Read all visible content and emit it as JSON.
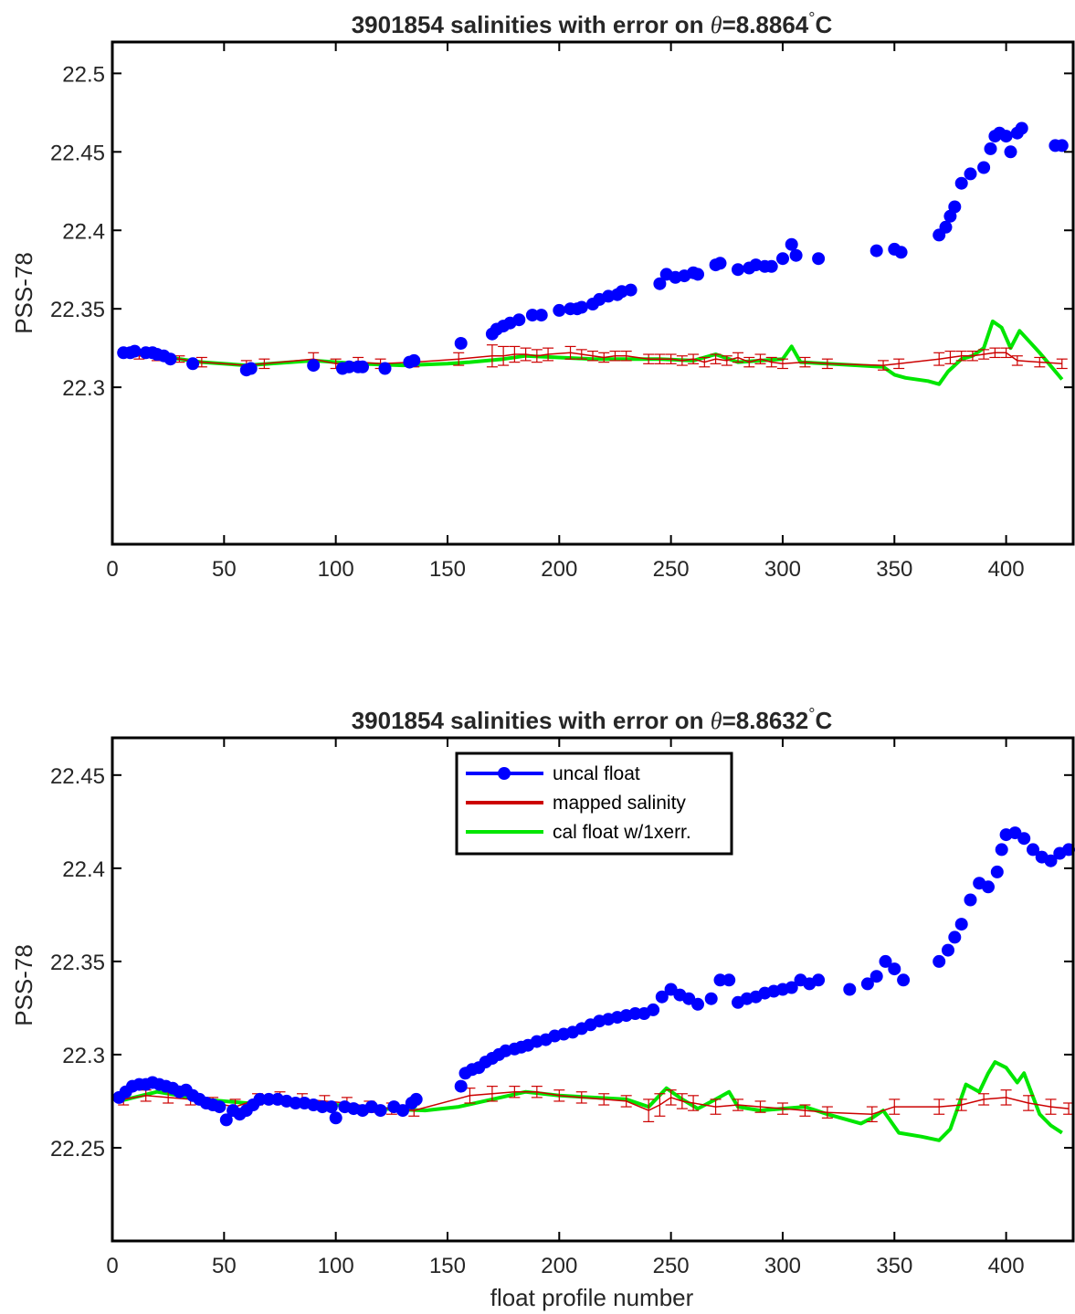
{
  "chart_data": [
    {
      "type": "scatter",
      "title": "3901854 salinities with error on θ=8.8864°C",
      "title_prefix": "3901854 salinities with error on ",
      "title_theta": "θ",
      "title_value": "=8.8864",
      "title_degree": "°",
      "title_unit": "C",
      "xlabel": "",
      "ylabel": "PSS-78",
      "xlim": [
        0,
        430
      ],
      "ylim": [
        22.2,
        22.52
      ],
      "xticks": [
        0,
        50,
        100,
        150,
        200,
        250,
        300,
        350,
        400
      ],
      "yticks": [
        22.3,
        22.35,
        22.4,
        22.45,
        22.5
      ],
      "ytick_labels": [
        "22.3",
        "22.35",
        "22.4",
        "22.45",
        "22.5"
      ],
      "legend": false,
      "series": [
        {
          "name": "uncal float",
          "color": "#0000ff",
          "marker": "circle",
          "x": [
            5,
            8,
            10,
            15,
            18,
            20,
            23,
            26,
            36,
            60,
            62,
            90,
            103,
            106,
            110,
            112,
            122,
            133,
            135,
            156,
            170,
            172,
            175,
            178,
            182,
            188,
            192,
            200,
            205,
            208,
            210,
            215,
            218,
            222,
            226,
            228,
            232,
            245,
            248,
            252,
            256,
            260,
            262,
            270,
            272,
            280,
            285,
            288,
            292,
            295,
            300,
            304,
            306,
            316,
            342,
            350,
            353,
            370,
            373,
            375,
            377,
            380,
            384,
            390,
            393,
            395,
            397,
            400,
            402,
            405,
            407,
            422,
            425
          ],
          "y": [
            22.322,
            22.322,
            22.323,
            22.322,
            22.322,
            22.321,
            22.32,
            22.318,
            22.315,
            22.311,
            22.312,
            22.314,
            22.312,
            22.313,
            22.313,
            22.313,
            22.312,
            22.316,
            22.317,
            22.328,
            22.334,
            22.337,
            22.339,
            22.341,
            22.343,
            22.346,
            22.346,
            22.349,
            22.35,
            22.35,
            22.351,
            22.353,
            22.356,
            22.358,
            22.359,
            22.361,
            22.362,
            22.366,
            22.372,
            22.37,
            22.371,
            22.373,
            22.372,
            22.378,
            22.379,
            22.375,
            22.376,
            22.378,
            22.377,
            22.377,
            22.382,
            22.391,
            22.384,
            22.382,
            22.387,
            22.388,
            22.386,
            22.397,
            22.402,
            22.409,
            22.415,
            22.43,
            22.436,
            22.44,
            22.452,
            22.46,
            22.462,
            22.46,
            22.45,
            22.462,
            22.465,
            22.454,
            22.454
          ]
        },
        {
          "name": "mapped salinity",
          "color": "#cc0000",
          "type": "errorbar",
          "x": [
            5,
            12,
            20,
            30,
            40,
            60,
            68,
            90,
            100,
            110,
            120,
            135,
            155,
            170,
            175,
            180,
            185,
            190,
            195,
            205,
            210,
            215,
            220,
            225,
            230,
            240,
            245,
            250,
            255,
            260,
            265,
            270,
            275,
            280,
            285,
            290,
            295,
            300,
            310,
            320,
            345,
            352,
            370,
            375,
            380,
            385,
            390,
            395,
            400,
            405,
            415,
            425
          ],
          "y": [
            22.322,
            22.32,
            22.319,
            22.318,
            22.316,
            22.314,
            22.315,
            22.318,
            22.315,
            22.316,
            22.315,
            22.316,
            22.318,
            22.32,
            22.32,
            22.321,
            22.321,
            22.32,
            22.321,
            22.322,
            22.321,
            22.32,
            22.319,
            22.32,
            22.32,
            22.318,
            22.318,
            22.318,
            22.317,
            22.318,
            22.316,
            22.318,
            22.317,
            22.319,
            22.316,
            22.318,
            22.316,
            22.315,
            22.316,
            22.315,
            22.314,
            22.315,
            22.318,
            22.319,
            22.32,
            22.32,
            22.321,
            22.322,
            22.322,
            22.317,
            22.316,
            22.315
          ],
          "err": [
            0.002,
            0.002,
            0.002,
            0.002,
            0.003,
            0.003,
            0.003,
            0.004,
            0.003,
            0.003,
            0.003,
            0.003,
            0.004,
            0.007,
            0.006,
            0.005,
            0.004,
            0.004,
            0.004,
            0.004,
            0.003,
            0.003,
            0.003,
            0.003,
            0.003,
            0.003,
            0.003,
            0.003,
            0.003,
            0.003,
            0.003,
            0.003,
            0.003,
            0.003,
            0.003,
            0.003,
            0.003,
            0.003,
            0.003,
            0.003,
            0.003,
            0.003,
            0.004,
            0.004,
            0.003,
            0.003,
            0.003,
            0.003,
            0.003,
            0.003,
            0.003,
            0.003
          ]
        },
        {
          "name": "cal float w/1xerr.",
          "color": "#00e600",
          "type": "line",
          "x": [
            5,
            20,
            40,
            60,
            90,
            110,
            130,
            150,
            160,
            175,
            185,
            200,
            215,
            230,
            245,
            260,
            270,
            280,
            290,
            300,
            304,
            308,
            320,
            345,
            350,
            355,
            365,
            370,
            374,
            380,
            385,
            390,
            394,
            398,
            402,
            406,
            415,
            425
          ],
          "y": [
            22.322,
            22.32,
            22.316,
            22.314,
            22.317,
            22.315,
            22.314,
            22.315,
            22.316,
            22.318,
            22.32,
            22.319,
            22.318,
            22.318,
            22.318,
            22.317,
            22.321,
            22.316,
            22.317,
            22.318,
            22.326,
            22.316,
            22.315,
            22.313,
            22.308,
            22.306,
            22.304,
            22.302,
            22.31,
            22.318,
            22.32,
            22.325,
            22.342,
            22.338,
            22.325,
            22.336,
            22.322,
            22.305
          ]
        }
      ]
    },
    {
      "type": "scatter",
      "title": "3901854 salinities with error on θ=8.8632°C",
      "title_prefix": "3901854 salinities with error on ",
      "title_theta": "θ",
      "title_value": "=8.8632",
      "title_degree": "°",
      "title_unit": "C",
      "xlabel": "float profile number",
      "ylabel": "PSS-78",
      "xlim": [
        0,
        430
      ],
      "ylim": [
        22.2,
        22.47
      ],
      "xticks": [
        0,
        50,
        100,
        150,
        200,
        250,
        300,
        350,
        400
      ],
      "yticks": [
        22.25,
        22.3,
        22.35,
        22.4,
        22.45
      ],
      "ytick_labels": [
        "22.25",
        "22.3",
        "22.35",
        "22.4",
        "22.45"
      ],
      "legend": true,
      "legend_position": "top-center",
      "series": [
        {
          "name": "uncal float",
          "color": "#0000ff",
          "marker": "circle",
          "x": [
            3,
            6,
            9,
            12,
            15,
            18,
            21,
            24,
            27,
            30,
            33,
            36,
            39,
            42,
            45,
            48,
            51,
            54,
            57,
            60,
            63,
            66,
            70,
            74,
            78,
            82,
            86,
            90,
            94,
            98,
            100,
            104,
            108,
            112,
            116,
            120,
            126,
            130,
            134,
            136,
            156,
            158,
            161,
            164,
            167,
            170,
            173,
            176,
            180,
            183,
            186,
            190,
            194,
            198,
            202,
            206,
            210,
            214,
            218,
            222,
            226,
            230,
            234,
            238,
            242,
            246,
            250,
            254,
            258,
            262,
            268,
            272,
            276,
            280,
            284,
            288,
            292,
            296,
            300,
            304,
            308,
            312,
            316,
            330,
            338,
            342,
            346,
            350,
            354,
            370,
            374,
            377,
            380,
            384,
            388,
            392,
            396,
            398,
            400,
            404,
            408,
            412,
            416,
            420,
            424,
            428
          ],
          "y": [
            22.277,
            22.28,
            22.283,
            22.284,
            22.284,
            22.285,
            22.284,
            22.283,
            22.282,
            22.28,
            22.281,
            22.278,
            22.276,
            22.274,
            22.273,
            22.272,
            22.265,
            22.27,
            22.268,
            22.27,
            22.273,
            22.276,
            22.276,
            22.276,
            22.275,
            22.274,
            22.274,
            22.273,
            22.272,
            22.272,
            22.266,
            22.272,
            22.271,
            22.27,
            22.272,
            22.27,
            22.272,
            22.27,
            22.274,
            22.276,
            22.283,
            22.29,
            22.292,
            22.293,
            22.296,
            22.298,
            22.3,
            22.302,
            22.303,
            22.304,
            22.305,
            22.307,
            22.308,
            22.31,
            22.311,
            22.312,
            22.314,
            22.316,
            22.318,
            22.319,
            22.32,
            22.321,
            22.322,
            22.322,
            22.324,
            22.331,
            22.335,
            22.332,
            22.33,
            22.327,
            22.33,
            22.34,
            22.34,
            22.328,
            22.33,
            22.331,
            22.333,
            22.334,
            22.335,
            22.336,
            22.34,
            22.338,
            22.34,
            22.335,
            22.338,
            22.342,
            22.35,
            22.346,
            22.34,
            22.35,
            22.356,
            22.363,
            22.37,
            22.383,
            22.392,
            22.39,
            22.398,
            22.41,
            22.418,
            22.419,
            22.416,
            22.41,
            22.406,
            22.404,
            22.408,
            22.41
          ]
        },
        {
          "name": "mapped salinity",
          "color": "#cc0000",
          "type": "errorbar",
          "x": [
            5,
            15,
            25,
            35,
            45,
            55,
            65,
            75,
            85,
            95,
            105,
            115,
            125,
            135,
            160,
            170,
            180,
            190,
            200,
            210,
            220,
            230,
            240,
            245,
            250,
            255,
            260,
            270,
            280,
            290,
            300,
            310,
            320,
            340,
            350,
            370,
            380,
            390,
            400,
            410,
            420,
            428
          ],
          "y": [
            22.276,
            22.278,
            22.277,
            22.276,
            22.274,
            22.272,
            22.276,
            22.277,
            22.276,
            22.275,
            22.274,
            22.272,
            22.271,
            22.27,
            22.278,
            22.279,
            22.28,
            22.28,
            22.278,
            22.277,
            22.276,
            22.275,
            22.27,
            22.273,
            22.277,
            22.275,
            22.274,
            22.272,
            22.273,
            22.272,
            22.271,
            22.27,
            22.269,
            22.268,
            22.272,
            22.272,
            22.273,
            22.276,
            22.277,
            22.274,
            22.272,
            22.271
          ],
          "err": [
            0.003,
            0.003,
            0.003,
            0.003,
            0.003,
            0.004,
            0.003,
            0.003,
            0.003,
            0.003,
            0.003,
            0.003,
            0.003,
            0.003,
            0.004,
            0.004,
            0.003,
            0.003,
            0.003,
            0.003,
            0.003,
            0.003,
            0.006,
            0.006,
            0.004,
            0.004,
            0.004,
            0.004,
            0.003,
            0.003,
            0.003,
            0.003,
            0.003,
            0.004,
            0.004,
            0.004,
            0.003,
            0.003,
            0.004,
            0.004,
            0.004,
            0.003
          ]
        },
        {
          "name": "cal float w/1xerr.",
          "color": "#00e600",
          "type": "line",
          "x": [
            3,
            20,
            40,
            60,
            80,
            100,
            120,
            140,
            155,
            170,
            185,
            200,
            215,
            230,
            240,
            248,
            255,
            262,
            270,
            276,
            280,
            290,
            300,
            310,
            320,
            335,
            340,
            345,
            352,
            362,
            370,
            375,
            382,
            388,
            392,
            395,
            400,
            405,
            408,
            415,
            420,
            425
          ],
          "y": [
            22.275,
            22.28,
            22.276,
            22.274,
            22.275,
            22.273,
            22.271,
            22.27,
            22.272,
            22.276,
            22.28,
            22.278,
            22.277,
            22.276,
            22.272,
            22.282,
            22.276,
            22.271,
            22.276,
            22.28,
            22.272,
            22.27,
            22.271,
            22.272,
            22.268,
            22.263,
            22.266,
            22.27,
            22.258,
            22.256,
            22.254,
            22.26,
            22.284,
            22.28,
            22.29,
            22.296,
            22.293,
            22.285,
            22.29,
            22.268,
            22.262,
            22.258
          ]
        }
      ]
    }
  ]
}
